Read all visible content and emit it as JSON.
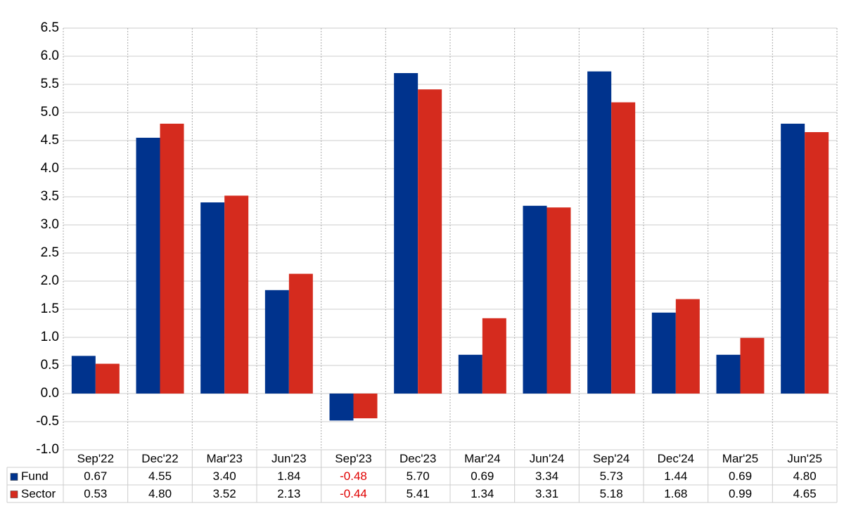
{
  "chart_data": {
    "type": "bar",
    "categories": [
      "Sep'22",
      "Dec'22",
      "Mar'23",
      "Jun'23",
      "Sep'23",
      "Dec'23",
      "Mar'24",
      "Jun'24",
      "Sep'24",
      "Dec'24",
      "Mar'25",
      "Jun'25"
    ],
    "series": [
      {
        "name": "Fund",
        "color": "#00338d",
        "values": [
          0.67,
          4.55,
          3.4,
          1.84,
          -0.48,
          5.7,
          0.69,
          3.34,
          5.73,
          1.44,
          0.69,
          4.8
        ],
        "value_labels": [
          "0.67",
          "4.55",
          "3.40",
          "1.84",
          "-0.48",
          "5.70",
          "0.69",
          "3.34",
          "5.73",
          "1.44",
          "0.69",
          "4.80"
        ]
      },
      {
        "name": "Sector",
        "color": "#d52b1e",
        "values": [
          0.53,
          4.8,
          3.52,
          2.13,
          -0.44,
          5.41,
          1.34,
          3.31,
          5.18,
          1.68,
          0.99,
          4.65
        ],
        "value_labels": [
          "0.53",
          "4.80",
          "3.52",
          "2.13",
          "-0.44",
          "5.41",
          "1.34",
          "3.31",
          "5.18",
          "1.68",
          "0.99",
          "4.65"
        ]
      }
    ],
    "ylim": [
      -1.0,
      6.5
    ],
    "yticks": [
      6.5,
      {
        "value": 6,
        "label": "6.0"
      },
      5.5,
      {
        "value": 5,
        "label": "5.0"
      },
      4.5,
      {
        "value": 4,
        "label": "4.0"
      },
      3.5,
      {
        "value": 3,
        "label": "3.0"
      },
      2.5,
      {
        "value": 2,
        "label": "2.0"
      },
      1.5,
      {
        "value": 1,
        "label": "1.0"
      },
      0.5,
      {
        "value": 0,
        "label": "0.0"
      },
      -0.5,
      {
        "value": -1,
        "label": "-1.0"
      }
    ],
    "grid": true,
    "negative_color": "#e00000"
  }
}
